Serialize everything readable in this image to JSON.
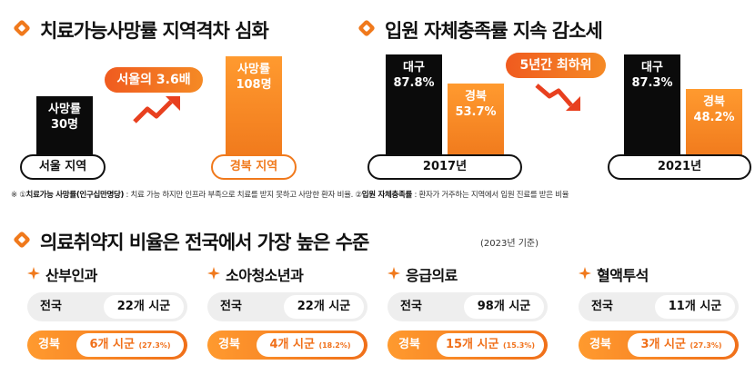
{
  "colors": {
    "accent": "#f0791c",
    "accent_dark": "#f05b1f",
    "black": "#0b0b0b"
  },
  "section1": {
    "title": "치료가능사망률 지역격차 심화",
    "seoul": {
      "line1": "사망률",
      "line2": "30명",
      "label": "서울 지역"
    },
    "callout": "서울의 3.6배",
    "gyeongbuk": {
      "line1": "사망률",
      "line2": "108명",
      "label": "경북 지역"
    }
  },
  "section2": {
    "title": "입원 자체충족률 지속 감소세",
    "year2017": {
      "daegu_name": "대구",
      "daegu_value": "87.8%",
      "gb_name": "경북",
      "gb_value": "53.7%",
      "year": "2017년"
    },
    "callout": "5년간 최하위",
    "year2021": {
      "daegu_name": "대구",
      "daegu_value": "87.3%",
      "gb_name": "경북",
      "gb_value": "48.2%",
      "year": "2021년"
    }
  },
  "footnote": {
    "prefix": "※ ①",
    "term1": "치료가능 사망률(인구십만명당)",
    "desc1": " : 치료 가능 하지만 인프라 부족으로 치료를 받지 못하고 사망한 환자 비율. ②",
    "term2": "입원 자체충족률",
    "desc2": " : 환자가 거주하는 지역에서 입원 진료를 받은 비율"
  },
  "section3": {
    "title": "의료취약지 비율은 전국에서 가장 높은 수준",
    "subtitle": "(2023년 기준)",
    "categories": [
      {
        "name": "산부인과",
        "nat_label": "전국",
        "nat_value": "22개 시군",
        "gb_label": "경북",
        "gb_value": "6개 시군",
        "gb_pct": "(27.3%)"
      },
      {
        "name": "소아청소년과",
        "nat_label": "전국",
        "nat_value": "22개 시군",
        "gb_label": "경북",
        "gb_value": "4개 시군",
        "gb_pct": "(18.2%)"
      },
      {
        "name": "응급의료",
        "nat_label": "전국",
        "nat_value": "98개 시군",
        "gb_label": "경북",
        "gb_value": "15개 시군",
        "gb_pct": "(15.3%)"
      },
      {
        "name": "혈액투석",
        "nat_label": "전국",
        "nat_value": "11개 시군",
        "gb_label": "경북",
        "gb_value": "3개 시군",
        "gb_pct": "(27.3%)"
      }
    ]
  }
}
